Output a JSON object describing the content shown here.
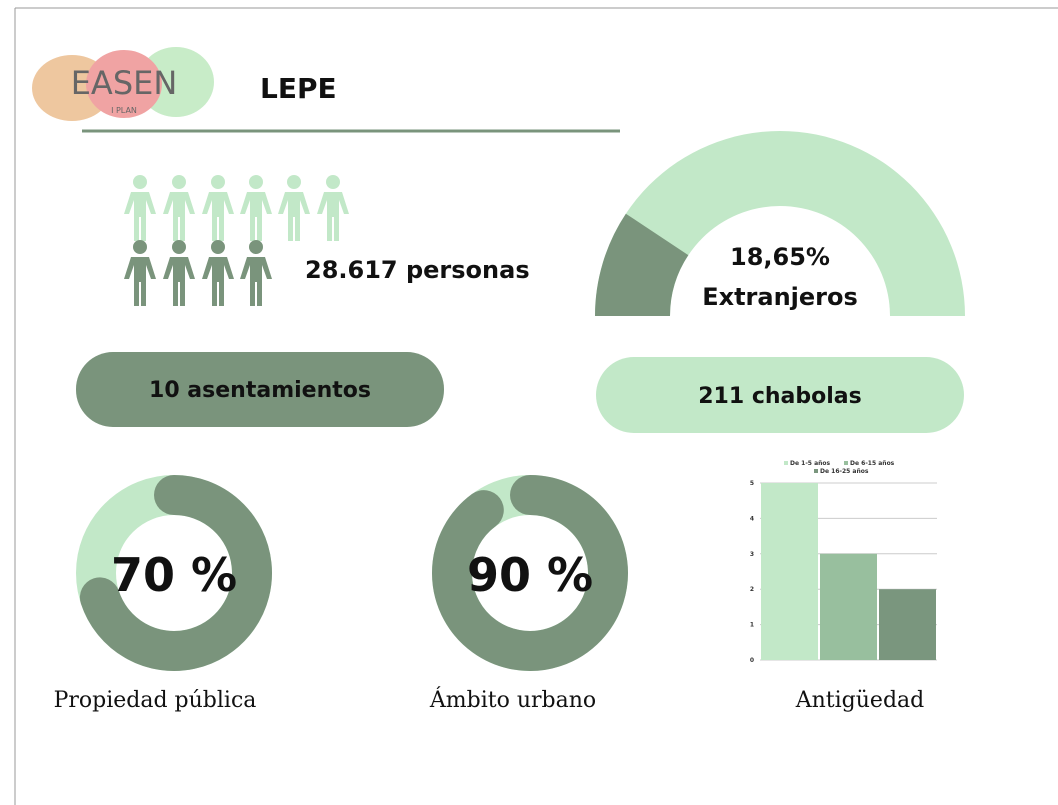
{
  "header": {
    "logo": "EASEN",
    "logo_sub": "I PLAN",
    "title": "LEPE"
  },
  "population": {
    "label": "28.617 personas"
  },
  "foreigners": {
    "value": 18.65,
    "value_label": "18,65%",
    "label": "Extranjeros"
  },
  "settlements": {
    "label": "10 asentamientos"
  },
  "shacks": {
    "label": "211 chabolas"
  },
  "donuts": [
    {
      "value": 70,
      "value_label": "70 %",
      "caption": "Propiedad pública"
    },
    {
      "value": 90,
      "value_label": "90 %",
      "caption": "Ámbito urbano"
    }
  ],
  "chart_data": {
    "type": "bar",
    "caption": "Antigüedad",
    "series": [
      {
        "name": "De 1-5 años",
        "color": "#c2e8c8",
        "values": [
          5
        ]
      },
      {
        "name": "De 6-15 años",
        "color": "#98bf9e",
        "values": [
          3
        ]
      },
      {
        "name": "De 16-25 años",
        "color": "#7a967e",
        "values": [
          2
        ]
      }
    ],
    "ylim": [
      0,
      5
    ],
    "yticks": [
      0,
      1,
      2,
      3,
      4,
      5
    ],
    "grid": true
  }
}
